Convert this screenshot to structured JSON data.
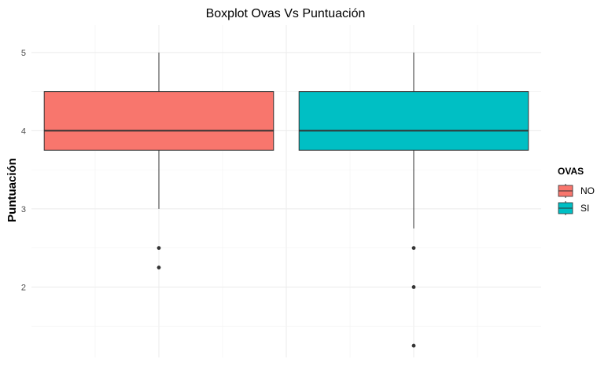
{
  "chart_data": {
    "type": "boxplot",
    "title": "Boxplot Ovas Vs Puntuación",
    "xlabel": "",
    "ylabel": "Puntuación",
    "ylim": [
      1.1,
      5.35
    ],
    "yticks": [
      2,
      3,
      4,
      5
    ],
    "grid": true,
    "legend": {
      "title": "OVAS",
      "position": "right"
    },
    "series": [
      {
        "name": "NO",
        "color": "#F8766D",
        "q1": 3.75,
        "median": 4,
        "q3": 4.5,
        "whisker_low": 3,
        "whisker_high": 5,
        "outliers": [
          2.5,
          2.25
        ]
      },
      {
        "name": "SI",
        "color": "#00BFC4",
        "q1": 3.75,
        "median": 4,
        "q3": 4.5,
        "whisker_low": 2.75,
        "whisker_high": 5,
        "outliers": [
          2.5,
          2,
          1.25
        ]
      }
    ]
  }
}
